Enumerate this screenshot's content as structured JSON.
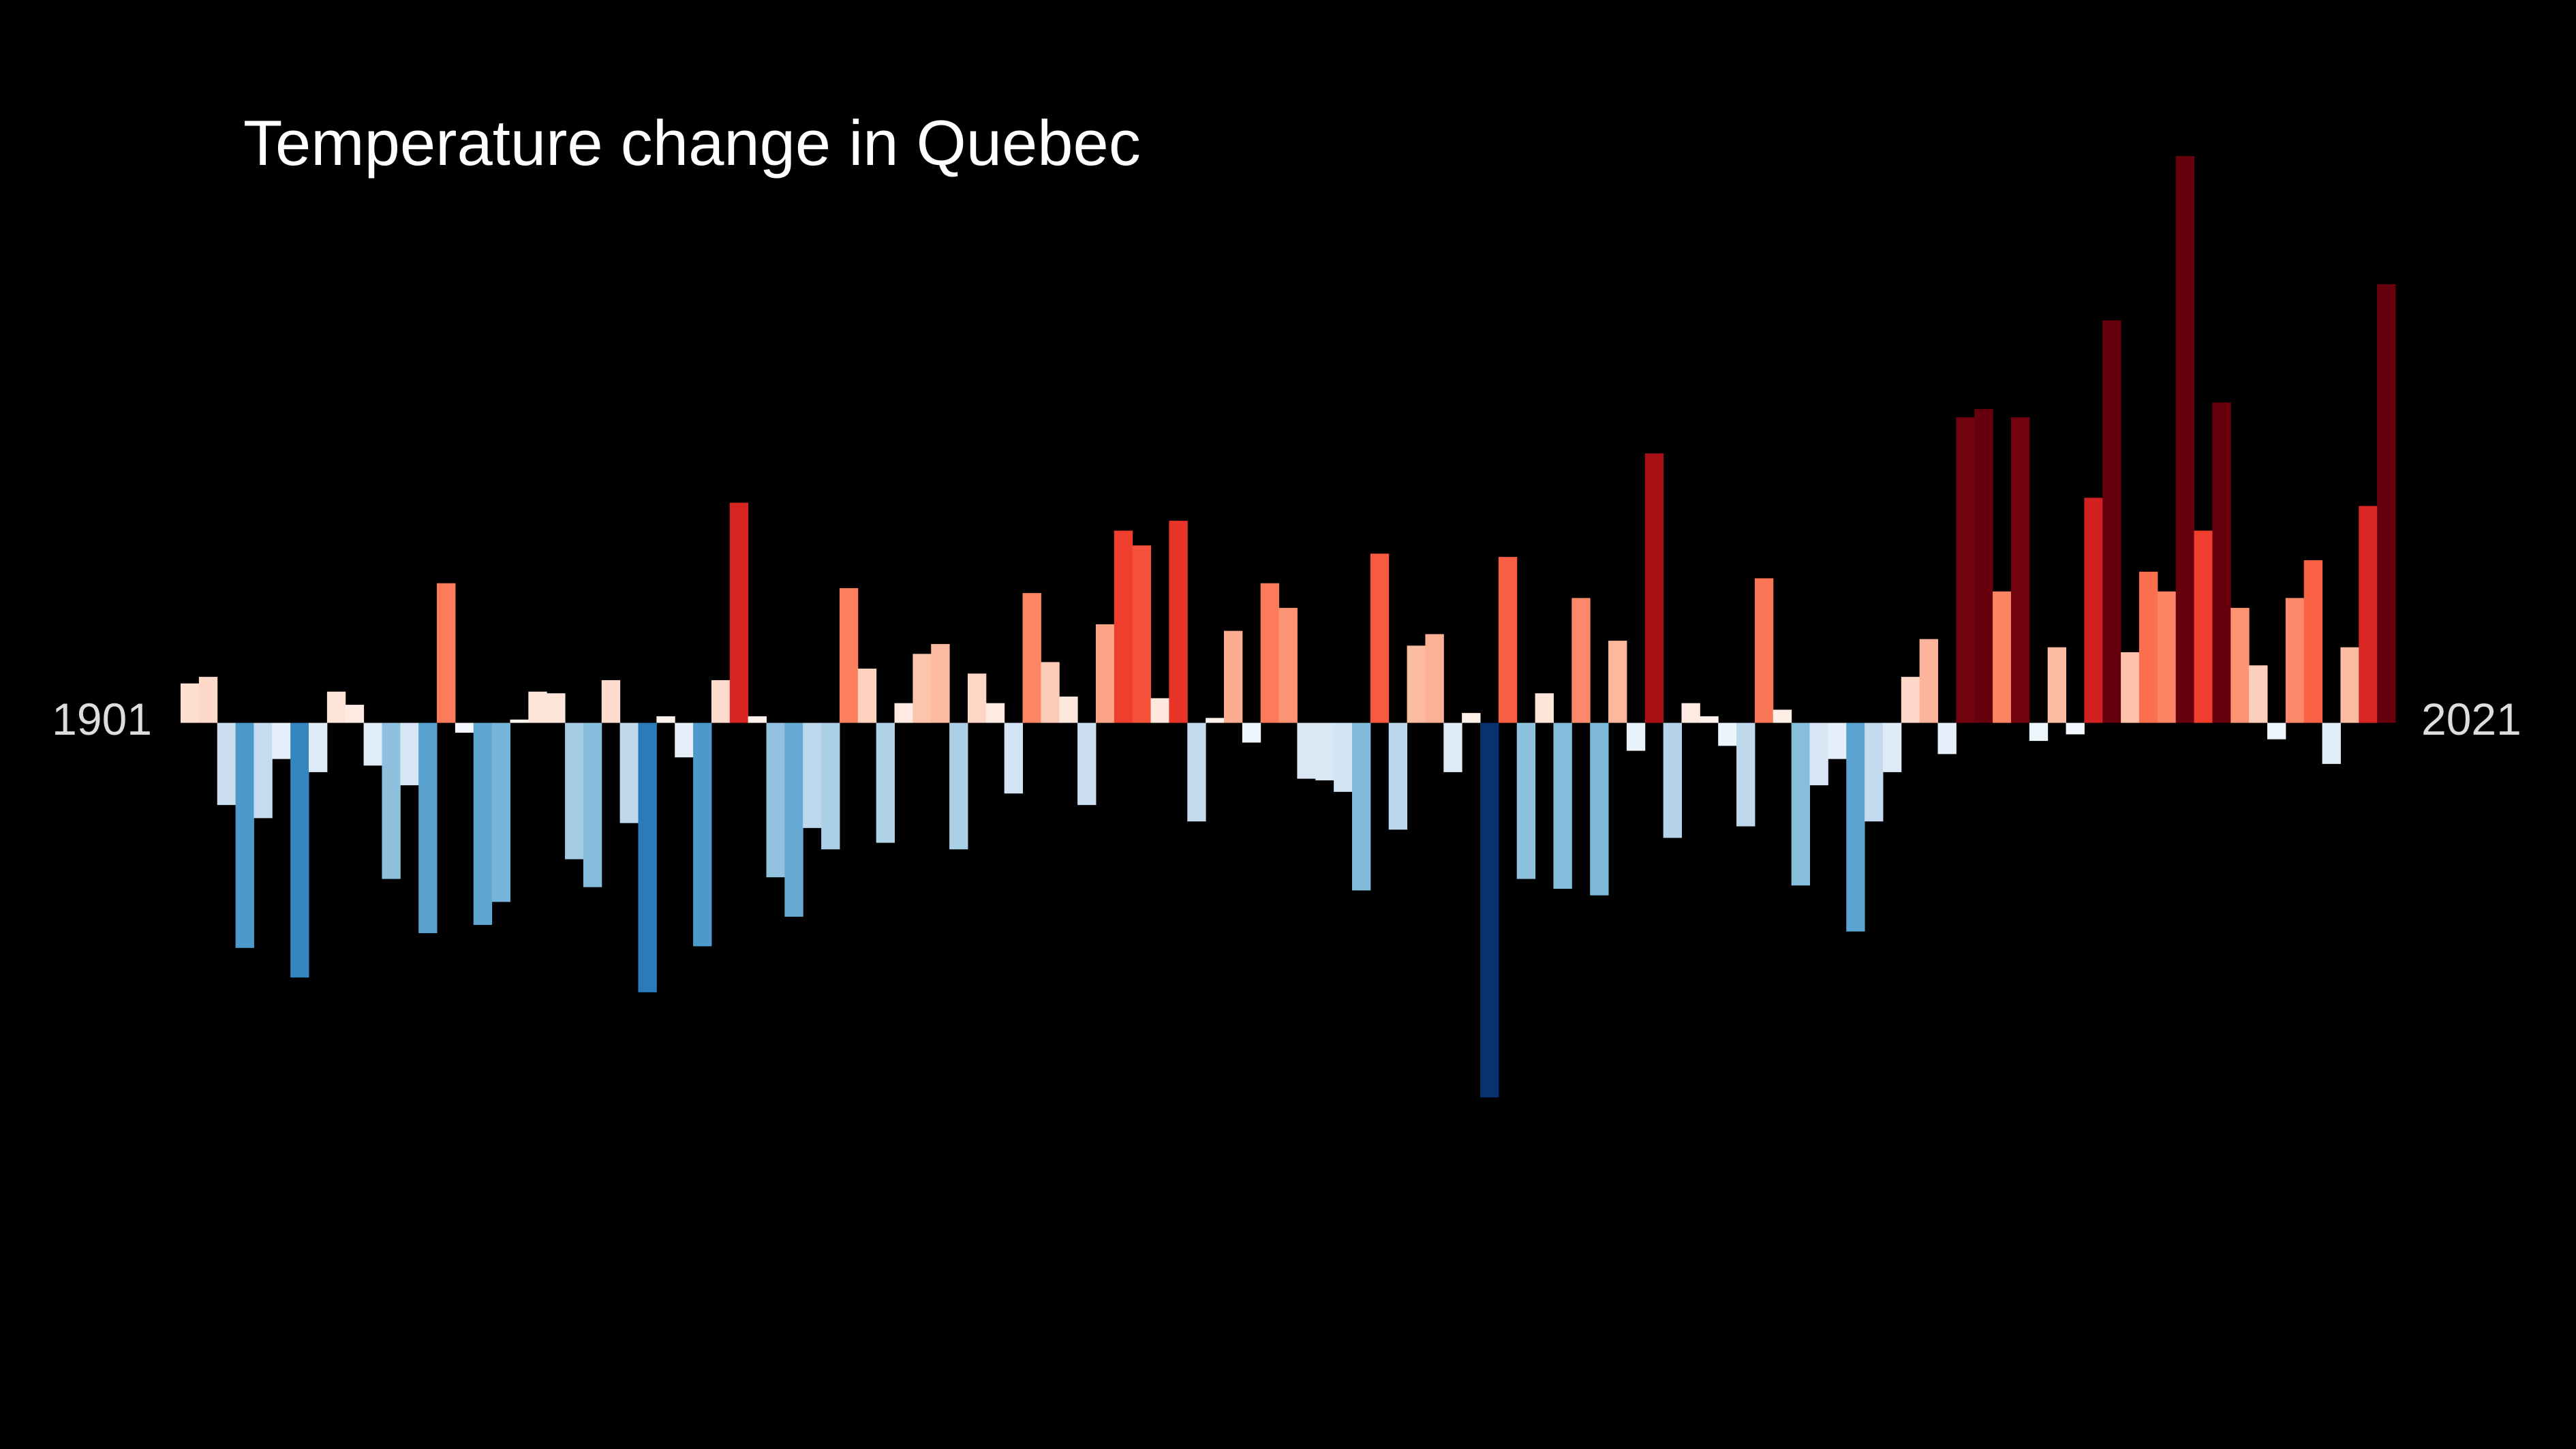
{
  "chart_data": {
    "type": "bar",
    "title": "Temperature change in Quebec",
    "categories": [
      "1901",
      null,
      null,
      null,
      null,
      null,
      null,
      null,
      null,
      null,
      null,
      null,
      null,
      null,
      null,
      null,
      null,
      null,
      null,
      null,
      null,
      null,
      null,
      null,
      null,
      null,
      null,
      null,
      null,
      null,
      null,
      null,
      null,
      null,
      null,
      null,
      null,
      null,
      null,
      null,
      null,
      null,
      null,
      null,
      null,
      null,
      null,
      null,
      null,
      null,
      null,
      null,
      null,
      null,
      null,
      null,
      null,
      null,
      null,
      null,
      null,
      null,
      null,
      null,
      null,
      null,
      null,
      null,
      null,
      null,
      null,
      null,
      null,
      null,
      null,
      null,
      null,
      null,
      null,
      null,
      null,
      null,
      null,
      null,
      null,
      null,
      null,
      null,
      null,
      null,
      null,
      null,
      null,
      null,
      null,
      null,
      null,
      null,
      null,
      null,
      null,
      null,
      null,
      null,
      null,
      null,
      null,
      null,
      null,
      null,
      null,
      null,
      null,
      null,
      null,
      null,
      null,
      null,
      null,
      null,
      "2021"
    ],
    "values": [
      0.24,
      0.28,
      -0.5,
      -1.37,
      -0.58,
      -0.22,
      -1.55,
      -0.3,
      0.19,
      0.11,
      -0.26,
      -0.95,
      -0.38,
      -1.28,
      0.85,
      -0.06,
      -1.23,
      -1.09,
      0.02,
      0.19,
      0.18,
      -0.83,
      -1.0,
      0.26,
      -0.61,
      -1.64,
      0.04,
      -0.21,
      -1.36,
      0.26,
      1.34,
      0.04,
      -0.94,
      -1.18,
      -0.64,
      -0.77,
      0.82,
      0.33,
      -0.73,
      0.12,
      0.42,
      0.48,
      -0.77,
      0.3,
      0.12,
      -0.43,
      0.79,
      0.37,
      0.16,
      -0.5,
      0.6,
      1.17,
      1.08,
      0.15,
      1.23,
      -0.6,
      0.03,
      0.56,
      -0.12,
      0.85,
      0.7,
      -0.34,
      -0.35,
      -0.42,
      -1.02,
      1.03,
      -0.65,
      0.47,
      0.54,
      -0.3,
      0.06,
      -2.28,
      1.01,
      -0.95,
      0.18,
      -1.01,
      0.76,
      -1.05,
      0.5,
      -0.17,
      1.64,
      -0.7,
      0.12,
      0.04,
      -0.14,
      -0.63,
      0.88,
      0.08,
      -0.99,
      -0.38,
      -0.22,
      -1.27,
      -0.6,
      -0.3,
      0.28,
      0.51,
      -0.19,
      1.86,
      1.91,
      0.8,
      1.86,
      -0.11,
      0.46,
      -0.07,
      1.37,
      2.45,
      0.43,
      0.92,
      0.8,
      3.45,
      1.17,
      1.95,
      0.7,
      0.35,
      -0.1,
      0.76,
      0.99,
      -0.25,
      0.46,
      1.32,
      2.67
    ],
    "ylim": [
      -4.42,
      4.4
    ],
    "clim": [
      -2.3,
      1.9
    ],
    "colormap": {
      "negative": [
        "#f7fbff",
        "#deebf7",
        "#c6dbef",
        "#9ecae1",
        "#6baed6",
        "#4292c6",
        "#2171b5",
        "#08519c",
        "#08306b"
      ],
      "positive": [
        "#fff5f0",
        "#fee0d2",
        "#fcbba1",
        "#fc9272",
        "#fb6a4a",
        "#ef3b2c",
        "#cb181d",
        "#a50f15",
        "#67000d"
      ]
    },
    "background": "#000000",
    "grid": false
  }
}
